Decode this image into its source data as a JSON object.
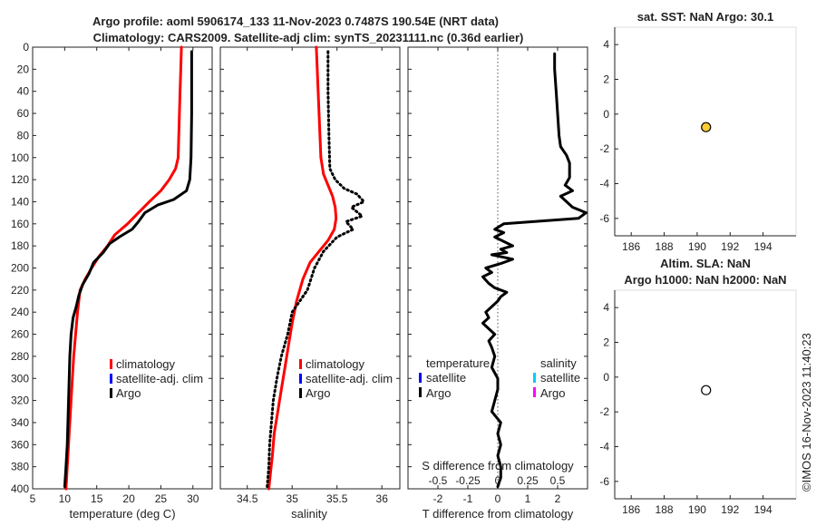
{
  "header": {
    "title_line1": "Argo profile: aoml 5906174_133 11-Nov-2023 0.7487S 190.54E (NRT data)",
    "title_line2": "Climatology: CARS2009. Satellite-adj clim: synTS_20231111.nc (0.36d earlier)"
  },
  "timestamp": "©IMOS 16-Nov-2023 11:40:23",
  "colors": {
    "climatology": "#ff0000",
    "satellite_clim": "#0000ff",
    "argo": "#000000",
    "satellite_s": "#00ccff",
    "argo_s": "#ff00ff",
    "marker_fill": "#ffcc33"
  },
  "chart_data": [
    {
      "id": "temperature",
      "type": "line",
      "xlabel": "temperature (deg C)",
      "xlim": [
        5,
        33
      ],
      "ylim": [
        0,
        400
      ],
      "y_reversed": true,
      "xticks": [
        5,
        10,
        15,
        20,
        25,
        30
      ],
      "yticks": [
        0,
        20,
        40,
        60,
        80,
        100,
        120,
        140,
        160,
        180,
        200,
        220,
        240,
        260,
        280,
        300,
        320,
        340,
        360,
        380,
        400
      ],
      "legend": [
        "climatology",
        "satellite-adj. clim",
        "Argo"
      ],
      "series": [
        {
          "name": "climatology",
          "style": "solid",
          "color": "#ff0000",
          "points": [
            [
              28.2,
              0
            ],
            [
              28.1,
              20
            ],
            [
              28.0,
              40
            ],
            [
              27.9,
              60
            ],
            [
              27.8,
              80
            ],
            [
              27.7,
              100
            ],
            [
              27.3,
              110
            ],
            [
              26.3,
              120
            ],
            [
              25.0,
              130
            ],
            [
              23.2,
              140
            ],
            [
              21.5,
              150
            ],
            [
              19.8,
              160
            ],
            [
              17.8,
              170
            ],
            [
              16.7,
              180
            ],
            [
              15.3,
              190
            ],
            [
              14.2,
              200
            ],
            [
              13.2,
              210
            ],
            [
              12.4,
              220
            ],
            [
              12.0,
              240
            ],
            [
              11.7,
              260
            ],
            [
              11.4,
              280
            ],
            [
              11.2,
              300
            ],
            [
              11.0,
              320
            ],
            [
              10.8,
              340
            ],
            [
              10.6,
              360
            ],
            [
              10.4,
              380
            ],
            [
              10.2,
              400
            ]
          ]
        },
        {
          "name": "Argo",
          "style": "solid",
          "color": "#000000",
          "points": [
            [
              29.8,
              4
            ],
            [
              29.8,
              20
            ],
            [
              29.8,
              60
            ],
            [
              29.7,
              100
            ],
            [
              29.5,
              120
            ],
            [
              29.0,
              130
            ],
            [
              27.0,
              138
            ],
            [
              24.5,
              143
            ],
            [
              22.5,
              150
            ],
            [
              21.5,
              158
            ],
            [
              20.5,
              165
            ],
            [
              18.5,
              172
            ],
            [
              17.0,
              178
            ],
            [
              16.5,
              182
            ],
            [
              16.0,
              186
            ],
            [
              14.5,
              195
            ],
            [
              13.8,
              205
            ],
            [
              12.8,
              215
            ],
            [
              12.2,
              225
            ],
            [
              11.8,
              235
            ],
            [
              11.3,
              245
            ],
            [
              11.0,
              260
            ],
            [
              10.8,
              280
            ],
            [
              10.7,
              300
            ],
            [
              10.6,
              320
            ],
            [
              10.5,
              340
            ],
            [
              10.4,
              360
            ],
            [
              10.2,
              380
            ],
            [
              10.0,
              398
            ]
          ]
        }
      ]
    },
    {
      "id": "salinity",
      "type": "line",
      "xlabel": "salinity",
      "xlim": [
        34.2,
        36.2
      ],
      "ylim": [
        0,
        400
      ],
      "y_reversed": true,
      "xticks": [
        34.5,
        35,
        35.5,
        36
      ],
      "legend": [
        "climatology",
        "satellite-adj. clim",
        "Argo"
      ],
      "series": [
        {
          "name": "climatology",
          "style": "solid",
          "color": "#ff0000",
          "points": [
            [
              35.27,
              0
            ],
            [
              35.28,
              20
            ],
            [
              35.29,
              40
            ],
            [
              35.3,
              60
            ],
            [
              35.31,
              80
            ],
            [
              35.32,
              100
            ],
            [
              35.35,
              115
            ],
            [
              35.4,
              125
            ],
            [
              35.45,
              135
            ],
            [
              35.48,
              145
            ],
            [
              35.49,
              155
            ],
            [
              35.47,
              165
            ],
            [
              35.4,
              175
            ],
            [
              35.3,
              185
            ],
            [
              35.2,
              195
            ],
            [
              35.12,
              210
            ],
            [
              35.05,
              230
            ],
            [
              35.0,
              250
            ],
            [
              34.96,
              270
            ],
            [
              34.92,
              290
            ],
            [
              34.88,
              310
            ],
            [
              34.84,
              330
            ],
            [
              34.8,
              350
            ],
            [
              34.78,
              370
            ],
            [
              34.76,
              385
            ],
            [
              34.74,
              400
            ]
          ]
        },
        {
          "name": "Argo",
          "style": "dotted",
          "color": "#000000",
          "points": [
            [
              35.4,
              4
            ],
            [
              35.4,
              40
            ],
            [
              35.41,
              80
            ],
            [
              35.42,
              110
            ],
            [
              35.48,
              120
            ],
            [
              35.58,
              128
            ],
            [
              35.72,
              133
            ],
            [
              35.8,
              140
            ],
            [
              35.66,
              145
            ],
            [
              35.78,
              153
            ],
            [
              35.6,
              158
            ],
            [
              35.68,
              165
            ],
            [
              35.5,
              172
            ],
            [
              35.35,
              185
            ],
            [
              35.25,
              200
            ],
            [
              35.17,
              220
            ],
            [
              35.0,
              240
            ],
            [
              34.95,
              260
            ],
            [
              34.88,
              280
            ],
            [
              34.83,
              300
            ],
            [
              34.79,
              320
            ],
            [
              34.77,
              340
            ],
            [
              34.75,
              360
            ],
            [
              34.74,
              380
            ],
            [
              34.72,
              400
            ]
          ]
        }
      ]
    },
    {
      "id": "difference",
      "type": "line",
      "xlabel": "T difference from climatology",
      "top_label": "S difference from climatology",
      "xlim": [
        -3,
        3
      ],
      "ylim": [
        0,
        400
      ],
      "y_reversed": true,
      "xticks": [
        -2,
        -1,
        0,
        1,
        2
      ],
      "top_ticks": [
        "-0.5",
        "-0.25",
        "0",
        "0.25",
        "0.5"
      ],
      "legend_t_title": "temperature",
      "legend_s_title": "salinity",
      "legend_t": [
        "satellite",
        "Argo"
      ],
      "legend_s": [
        "satellite",
        "Argo"
      ],
      "series": [
        {
          "name": "T diff",
          "style": "solid",
          "color": "#000000",
          "points": [
            [
              1.9,
              6
            ],
            [
              1.9,
              20
            ],
            [
              1.95,
              40
            ],
            [
              2.0,
              60
            ],
            [
              2.05,
              80
            ],
            [
              2.1,
              90
            ],
            [
              2.3,
              98
            ],
            [
              2.4,
              105
            ],
            [
              2.4,
              118
            ],
            [
              2.25,
              125
            ],
            [
              2.5,
              130
            ],
            [
              2.1,
              135
            ],
            [
              2.5,
              145
            ],
            [
              2.95,
              150
            ],
            [
              2.7,
              155
            ],
            [
              0.2,
              160
            ],
            [
              -0.1,
              165
            ],
            [
              0.2,
              168
            ],
            [
              -0.1,
              172
            ],
            [
              0.5,
              180
            ],
            [
              0.1,
              183
            ],
            [
              0.3,
              186
            ],
            [
              -0.2,
              188
            ],
            [
              0.5,
              192
            ],
            [
              0.1,
              196
            ],
            [
              -0.4,
              200
            ],
            [
              -0.2,
              204
            ],
            [
              -0.5,
              208
            ],
            [
              -0.3,
              214
            ],
            [
              -0.1,
              218
            ],
            [
              0.3,
              222
            ],
            [
              0.1,
              226
            ],
            [
              0.0,
              230
            ],
            [
              -0.2,
              235
            ],
            [
              -0.4,
              240
            ],
            [
              -0.3,
              245
            ],
            [
              -0.5,
              250
            ],
            [
              -0.3,
              255
            ],
            [
              -0.1,
              260
            ],
            [
              -0.3,
              266
            ],
            [
              -0.2,
              272
            ],
            [
              -0.1,
              280
            ],
            [
              -0.2,
              290
            ],
            [
              0.0,
              300
            ],
            [
              0.0,
              310
            ],
            [
              -0.1,
              320
            ],
            [
              -0.2,
              330
            ],
            [
              0.1,
              340
            ],
            [
              0.0,
              350
            ],
            [
              0.1,
              360
            ],
            [
              0.0,
              370
            ],
            [
              0.1,
              380
            ],
            [
              0.1,
              390
            ],
            [
              0.0,
              398
            ]
          ]
        }
      ]
    },
    {
      "id": "sst",
      "type": "scatter",
      "title": "sat. SST: NaN Argo: 30.1",
      "xlim": [
        185,
        196
      ],
      "ylim": [
        -7,
        5
      ],
      "xticks": [
        186,
        188,
        190,
        192,
        194
      ],
      "yticks": [
        -6,
        -4,
        -2,
        0,
        2,
        4
      ],
      "points": [
        {
          "x": 190.54,
          "y": -0.75,
          "fill": "#ffcc33"
        }
      ]
    },
    {
      "id": "sla",
      "type": "scatter",
      "title_line1": "Altim. SLA: NaN",
      "title_line2": "Argo h1000: NaN h2000: NaN",
      "xlim": [
        185,
        196
      ],
      "ylim": [
        -7,
        5
      ],
      "xticks": [
        186,
        188,
        190,
        192,
        194
      ],
      "yticks": [
        -6,
        -4,
        -2,
        0,
        2,
        4
      ],
      "points": [
        {
          "x": 190.54,
          "y": -0.75,
          "fill": "#ffffff"
        }
      ]
    }
  ]
}
